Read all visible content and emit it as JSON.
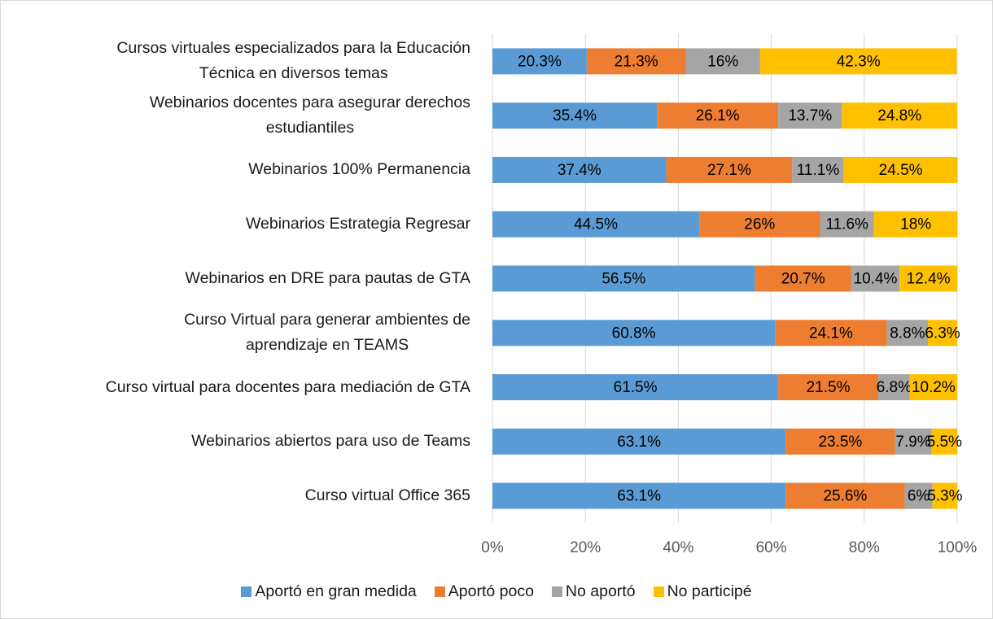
{
  "chart_data": {
    "type": "stacked_barh",
    "categories": [
      "Cursos virtuales especializados para la Educación\nTécnica en diversos temas",
      "Webinarios docentes para asegurar derechos\nestudiantiles",
      "Webinarios 100% Permanencia",
      "Webinarios Estrategia Regresar",
      "Webinarios en DRE para pautas de GTA",
      "Curso Virtual para generar ambientes de\naprendizaje en TEAMS",
      "Curso virtual para docentes para mediación de GTA",
      "Webinarios abiertos para uso de Teams",
      "Curso virtual Office 365"
    ],
    "series": [
      {
        "name": "Aportó en gran medida",
        "color": "#5b9bd5",
        "values": [
          20.3,
          35.4,
          37.4,
          44.5,
          56.5,
          60.8,
          61.5,
          63.1,
          63.1
        ],
        "value_labels": [
          "20.3%",
          "35.4%",
          "37.4%",
          "44.5%",
          "56.5%",
          "60.8%",
          "61.5%",
          "63.1%",
          "63.1%"
        ]
      },
      {
        "name": "Aportó poco",
        "color": "#ed7d31",
        "values": [
          21.3,
          26.1,
          27.1,
          26,
          20.7,
          24.1,
          21.5,
          23.5,
          25.6
        ],
        "value_labels": [
          "21.3%",
          "26.1%",
          "27.1%",
          "26%",
          "20.7%",
          "24.1%",
          "21.5%",
          "23.5%",
          "25.6%"
        ]
      },
      {
        "name": "No aportó",
        "color": "#a5a5a5",
        "values": [
          16,
          13.7,
          11.1,
          11.6,
          10.4,
          8.8,
          6.8,
          7.9,
          6
        ],
        "value_labels": [
          "16%",
          "13.7%",
          "11.1%",
          "11.6%",
          "10.4%",
          "8.8%",
          "6.8%",
          "7.9%",
          "6%"
        ]
      },
      {
        "name": "No participé",
        "color": "#ffc000",
        "values": [
          42.3,
          24.8,
          24.5,
          18,
          12.4,
          6.3,
          10.2,
          5.5,
          5.3
        ],
        "value_labels": [
          "42.3%",
          "24.8%",
          "24.5%",
          "18%",
          "12.4%",
          "6.3%",
          "10.2%",
          "5.5%",
          "5.3%"
        ]
      }
    ],
    "xlim": [
      0,
      100
    ],
    "xticks": [
      {
        "value": 0,
        "label": "0%"
      },
      {
        "value": 20,
        "label": "20%"
      },
      {
        "value": 40,
        "label": "40%"
      },
      {
        "value": 60,
        "label": "60%"
      },
      {
        "value": 80,
        "label": "80%"
      },
      {
        "value": 100,
        "label": "100%"
      }
    ],
    "grid": true,
    "legend": "bottom"
  }
}
